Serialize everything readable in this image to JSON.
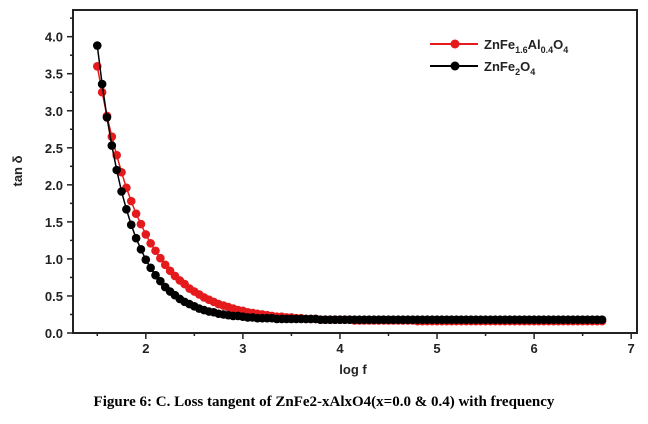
{
  "chart_data": {
    "type": "scatter",
    "title": "",
    "xlabel": "log f",
    "ylabel": "tan δ",
    "xlim": [
      1.25,
      7.06
    ],
    "ylim": [
      0,
      4.36
    ],
    "xticks": [
      2,
      3,
      4,
      5,
      6,
      7
    ],
    "yticks": [
      0.0,
      0.5,
      1.0,
      1.5,
      2.0,
      2.5,
      3.0,
      3.5,
      4.0
    ],
    "ytick_labels": [
      "0.0",
      "0.5",
      "1.0",
      "1.5",
      "2.0",
      "2.5",
      "3.0",
      "3.5",
      "4.0"
    ],
    "grid": false,
    "legend_position": "top-right",
    "x_start": 1.5,
    "x_step": 0.05,
    "series": [
      {
        "name": "ZnFe1.6Al0.4O4",
        "color": "#e41a1c",
        "values": [
          3.6,
          3.25,
          2.93,
          2.65,
          2.4,
          2.17,
          1.96,
          1.78,
          1.61,
          1.47,
          1.33,
          1.21,
          1.11,
          1.01,
          0.92,
          0.84,
          0.77,
          0.71,
          0.66,
          0.6,
          0.56,
          0.52,
          0.48,
          0.45,
          0.42,
          0.39,
          0.37,
          0.35,
          0.33,
          0.31,
          0.3,
          0.28,
          0.27,
          0.26,
          0.25,
          0.24,
          0.23,
          0.22,
          0.22,
          0.21,
          0.21,
          0.2,
          0.2,
          0.19,
          0.19,
          0.19,
          0.18,
          0.18,
          0.18,
          0.18,
          0.18,
          0.18,
          0.18,
          0.17,
          0.17,
          0.17,
          0.17,
          0.17,
          0.17,
          0.17,
          0.17,
          0.17,
          0.17,
          0.17,
          0.17,
          0.17,
          0.16,
          0.16,
          0.16,
          0.16,
          0.16,
          0.16,
          0.16,
          0.16,
          0.16,
          0.16,
          0.16,
          0.16,
          0.16,
          0.16,
          0.16,
          0.16,
          0.16,
          0.16,
          0.16,
          0.16,
          0.16,
          0.16,
          0.16,
          0.16,
          0.16,
          0.16,
          0.16,
          0.16,
          0.16,
          0.16,
          0.16,
          0.16,
          0.16,
          0.16,
          0.16,
          0.16,
          0.16,
          0.16,
          0.16
        ]
      },
      {
        "name": "ZnFe2O4",
        "color": "#000000",
        "values": [
          3.88,
          3.36,
          2.91,
          2.53,
          2.2,
          1.91,
          1.67,
          1.46,
          1.28,
          1.13,
          0.99,
          0.88,
          0.78,
          0.7,
          0.62,
          0.56,
          0.51,
          0.46,
          0.42,
          0.39,
          0.36,
          0.33,
          0.31,
          0.29,
          0.28,
          0.26,
          0.25,
          0.24,
          0.23,
          0.23,
          0.22,
          0.21,
          0.21,
          0.2,
          0.2,
          0.2,
          0.2,
          0.19,
          0.19,
          0.19,
          0.19,
          0.19,
          0.19,
          0.19,
          0.19,
          0.19,
          0.18,
          0.18,
          0.18,
          0.18,
          0.18,
          0.18,
          0.18,
          0.18,
          0.18,
          0.18,
          0.18,
          0.18,
          0.18,
          0.18,
          0.18,
          0.18,
          0.18,
          0.18,
          0.18,
          0.18,
          0.18,
          0.18,
          0.18,
          0.18,
          0.18,
          0.18,
          0.18,
          0.18,
          0.18,
          0.18,
          0.18,
          0.18,
          0.18,
          0.18,
          0.18,
          0.18,
          0.18,
          0.18,
          0.18,
          0.18,
          0.18,
          0.18,
          0.18,
          0.18,
          0.18,
          0.18,
          0.18,
          0.18,
          0.18,
          0.18,
          0.18,
          0.18,
          0.18,
          0.18,
          0.18,
          0.18,
          0.18,
          0.18,
          0.18
        ]
      }
    ]
  },
  "caption": "Figure 6: C. Loss tangent of ZnFe2-xAlxO4(x=0.0 & 0.4) with frequency"
}
